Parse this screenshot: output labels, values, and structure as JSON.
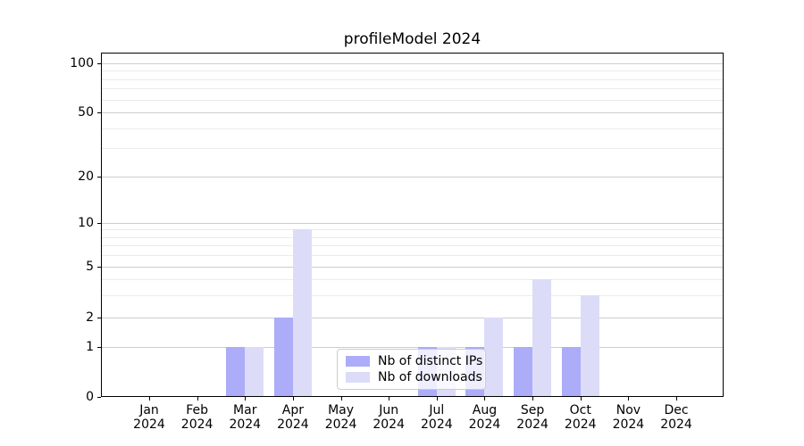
{
  "title": "profileModel 2024",
  "chart_data": {
    "type": "bar",
    "title": "profileModel 2024",
    "categories": [
      "Jan 2024",
      "Feb 2024",
      "Mar 2024",
      "Apr 2024",
      "May 2024",
      "Jun 2024",
      "Jul 2024",
      "Aug 2024",
      "Sep 2024",
      "Oct 2024",
      "Nov 2024",
      "Dec 2024"
    ],
    "x_months": [
      "Jan",
      "Feb",
      "Mar",
      "Apr",
      "May",
      "Jun",
      "Jul",
      "Aug",
      "Sep",
      "Oct",
      "Nov",
      "Dec"
    ],
    "x_year": "2024",
    "series": [
      {
        "name": "Nb of distinct IPs",
        "color": "#acacf8",
        "values": [
          0,
          0,
          1,
          2,
          0,
          0,
          1,
          1,
          1,
          1,
          0,
          0
        ]
      },
      {
        "name": "Nb of downloads",
        "color": "#dcdcf8",
        "values": [
          0,
          0,
          1,
          9,
          0,
          0,
          1,
          2,
          4,
          3,
          0,
          0
        ]
      }
    ],
    "yscale": "symlog",
    "ylim": [
      0,
      130
    ],
    "y_ticks": [
      0,
      1,
      2,
      5,
      10,
      20,
      50,
      100
    ],
    "y_minor_ticks": [
      3,
      4,
      6,
      7,
      8,
      9,
      30,
      40,
      60,
      70,
      80,
      90
    ],
    "grid": true,
    "legend_position": "lower center"
  },
  "legend": {
    "items": [
      {
        "label": "Nb of distinct IPs",
        "color": "#acacf8"
      },
      {
        "label": "Nb of downloads",
        "color": "#dcdcf8"
      }
    ]
  },
  "colors": {
    "distinct_ips": "#acacf8",
    "downloads": "#dcdcf8",
    "grid_major": "#cdcdcd",
    "grid_minor": "#ebebeb",
    "axis": "#000000",
    "legend_border": "#cccccc",
    "background": "#ffffff"
  }
}
